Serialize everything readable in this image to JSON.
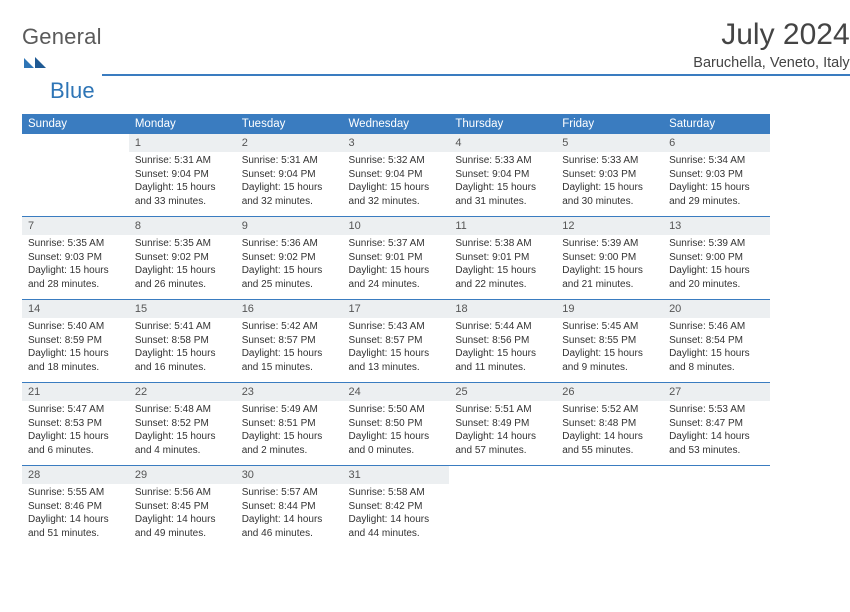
{
  "brand": {
    "general": "General",
    "blue": "Blue"
  },
  "title": "July 2024",
  "location": "Baruchella, Veneto, Italy",
  "colors": {
    "header_bar": "#3a7cc0",
    "daynum_bg": "#eceff1",
    "text": "#333333",
    "title_text": "#444444",
    "logo_gray": "#5a5a5a",
    "logo_blue": "#2e75b6"
  },
  "day_headers": [
    "Sunday",
    "Monday",
    "Tuesday",
    "Wednesday",
    "Thursday",
    "Friday",
    "Saturday"
  ],
  "weeks": [
    [
      null,
      {
        "n": "1",
        "sr": "Sunrise: 5:31 AM",
        "ss": "Sunset: 9:04 PM",
        "d1": "Daylight: 15 hours",
        "d2": "and 33 minutes."
      },
      {
        "n": "2",
        "sr": "Sunrise: 5:31 AM",
        "ss": "Sunset: 9:04 PM",
        "d1": "Daylight: 15 hours",
        "d2": "and 32 minutes."
      },
      {
        "n": "3",
        "sr": "Sunrise: 5:32 AM",
        "ss": "Sunset: 9:04 PM",
        "d1": "Daylight: 15 hours",
        "d2": "and 32 minutes."
      },
      {
        "n": "4",
        "sr": "Sunrise: 5:33 AM",
        "ss": "Sunset: 9:04 PM",
        "d1": "Daylight: 15 hours",
        "d2": "and 31 minutes."
      },
      {
        "n": "5",
        "sr": "Sunrise: 5:33 AM",
        "ss": "Sunset: 9:03 PM",
        "d1": "Daylight: 15 hours",
        "d2": "and 30 minutes."
      },
      {
        "n": "6",
        "sr": "Sunrise: 5:34 AM",
        "ss": "Sunset: 9:03 PM",
        "d1": "Daylight: 15 hours",
        "d2": "and 29 minutes."
      }
    ],
    [
      {
        "n": "7",
        "sr": "Sunrise: 5:35 AM",
        "ss": "Sunset: 9:03 PM",
        "d1": "Daylight: 15 hours",
        "d2": "and 28 minutes."
      },
      {
        "n": "8",
        "sr": "Sunrise: 5:35 AM",
        "ss": "Sunset: 9:02 PM",
        "d1": "Daylight: 15 hours",
        "d2": "and 26 minutes."
      },
      {
        "n": "9",
        "sr": "Sunrise: 5:36 AM",
        "ss": "Sunset: 9:02 PM",
        "d1": "Daylight: 15 hours",
        "d2": "and 25 minutes."
      },
      {
        "n": "10",
        "sr": "Sunrise: 5:37 AM",
        "ss": "Sunset: 9:01 PM",
        "d1": "Daylight: 15 hours",
        "d2": "and 24 minutes."
      },
      {
        "n": "11",
        "sr": "Sunrise: 5:38 AM",
        "ss": "Sunset: 9:01 PM",
        "d1": "Daylight: 15 hours",
        "d2": "and 22 minutes."
      },
      {
        "n": "12",
        "sr": "Sunrise: 5:39 AM",
        "ss": "Sunset: 9:00 PM",
        "d1": "Daylight: 15 hours",
        "d2": "and 21 minutes."
      },
      {
        "n": "13",
        "sr": "Sunrise: 5:39 AM",
        "ss": "Sunset: 9:00 PM",
        "d1": "Daylight: 15 hours",
        "d2": "and 20 minutes."
      }
    ],
    [
      {
        "n": "14",
        "sr": "Sunrise: 5:40 AM",
        "ss": "Sunset: 8:59 PM",
        "d1": "Daylight: 15 hours",
        "d2": "and 18 minutes."
      },
      {
        "n": "15",
        "sr": "Sunrise: 5:41 AM",
        "ss": "Sunset: 8:58 PM",
        "d1": "Daylight: 15 hours",
        "d2": "and 16 minutes."
      },
      {
        "n": "16",
        "sr": "Sunrise: 5:42 AM",
        "ss": "Sunset: 8:57 PM",
        "d1": "Daylight: 15 hours",
        "d2": "and 15 minutes."
      },
      {
        "n": "17",
        "sr": "Sunrise: 5:43 AM",
        "ss": "Sunset: 8:57 PM",
        "d1": "Daylight: 15 hours",
        "d2": "and 13 minutes."
      },
      {
        "n": "18",
        "sr": "Sunrise: 5:44 AM",
        "ss": "Sunset: 8:56 PM",
        "d1": "Daylight: 15 hours",
        "d2": "and 11 minutes."
      },
      {
        "n": "19",
        "sr": "Sunrise: 5:45 AM",
        "ss": "Sunset: 8:55 PM",
        "d1": "Daylight: 15 hours",
        "d2": "and 9 minutes."
      },
      {
        "n": "20",
        "sr": "Sunrise: 5:46 AM",
        "ss": "Sunset: 8:54 PM",
        "d1": "Daylight: 15 hours",
        "d2": "and 8 minutes."
      }
    ],
    [
      {
        "n": "21",
        "sr": "Sunrise: 5:47 AM",
        "ss": "Sunset: 8:53 PM",
        "d1": "Daylight: 15 hours",
        "d2": "and 6 minutes."
      },
      {
        "n": "22",
        "sr": "Sunrise: 5:48 AM",
        "ss": "Sunset: 8:52 PM",
        "d1": "Daylight: 15 hours",
        "d2": "and 4 minutes."
      },
      {
        "n": "23",
        "sr": "Sunrise: 5:49 AM",
        "ss": "Sunset: 8:51 PM",
        "d1": "Daylight: 15 hours",
        "d2": "and 2 minutes."
      },
      {
        "n": "24",
        "sr": "Sunrise: 5:50 AM",
        "ss": "Sunset: 8:50 PM",
        "d1": "Daylight: 15 hours",
        "d2": "and 0 minutes."
      },
      {
        "n": "25",
        "sr": "Sunrise: 5:51 AM",
        "ss": "Sunset: 8:49 PM",
        "d1": "Daylight: 14 hours",
        "d2": "and 57 minutes."
      },
      {
        "n": "26",
        "sr": "Sunrise: 5:52 AM",
        "ss": "Sunset: 8:48 PM",
        "d1": "Daylight: 14 hours",
        "d2": "and 55 minutes."
      },
      {
        "n": "27",
        "sr": "Sunrise: 5:53 AM",
        "ss": "Sunset: 8:47 PM",
        "d1": "Daylight: 14 hours",
        "d2": "and 53 minutes."
      }
    ],
    [
      {
        "n": "28",
        "sr": "Sunrise: 5:55 AM",
        "ss": "Sunset: 8:46 PM",
        "d1": "Daylight: 14 hours",
        "d2": "and 51 minutes."
      },
      {
        "n": "29",
        "sr": "Sunrise: 5:56 AM",
        "ss": "Sunset: 8:45 PM",
        "d1": "Daylight: 14 hours",
        "d2": "and 49 minutes."
      },
      {
        "n": "30",
        "sr": "Sunrise: 5:57 AM",
        "ss": "Sunset: 8:44 PM",
        "d1": "Daylight: 14 hours",
        "d2": "and 46 minutes."
      },
      {
        "n": "31",
        "sr": "Sunrise: 5:58 AM",
        "ss": "Sunset: 8:42 PM",
        "d1": "Daylight: 14 hours",
        "d2": "and 44 minutes."
      },
      null,
      null,
      null
    ]
  ]
}
